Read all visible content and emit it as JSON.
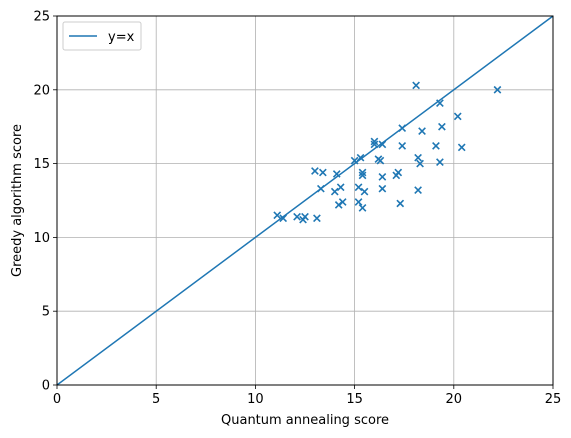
{
  "chart_data": {
    "type": "scatter",
    "xlabel": "Quantum annealing score",
    "ylabel": "Greedy algorithm score",
    "xlim": [
      0,
      25
    ],
    "ylim": [
      0,
      25
    ],
    "xticks": [
      "0",
      "5",
      "10",
      "15",
      "20",
      "25"
    ],
    "yticks": [
      "0",
      "5",
      "10",
      "15",
      "20",
      "25"
    ],
    "grid": true,
    "legend_position": "top-left",
    "reference_line": {
      "name": "y=x",
      "x": [
        0,
        25
      ],
      "y": [
        0,
        25
      ],
      "color": "#1f77b4"
    },
    "series": [
      {
        "marker": "x",
        "color": "#1f77b4",
        "points": [
          [
            11.1,
            11.5
          ],
          [
            11.4,
            11.3
          ],
          [
            12.1,
            11.4
          ],
          [
            12.4,
            11.2
          ],
          [
            12.5,
            11.4
          ],
          [
            13.1,
            11.3
          ],
          [
            13.3,
            13.3
          ],
          [
            13.0,
            14.5
          ],
          [
            13.4,
            14.4
          ],
          [
            14.0,
            13.1
          ],
          [
            14.1,
            14.3
          ],
          [
            14.3,
            13.4
          ],
          [
            14.2,
            12.2
          ],
          [
            14.4,
            12.4
          ],
          [
            15.0,
            15.2
          ],
          [
            15.2,
            13.4
          ],
          [
            15.2,
            12.4
          ],
          [
            15.3,
            15.4
          ],
          [
            15.4,
            14.2
          ],
          [
            15.4,
            14.4
          ],
          [
            15.5,
            13.1
          ],
          [
            15.4,
            12.0
          ],
          [
            16.0,
            16.3
          ],
          [
            16.0,
            16.5
          ],
          [
            16.2,
            15.3
          ],
          [
            16.3,
            15.2
          ],
          [
            16.4,
            16.3
          ],
          [
            16.4,
            14.1
          ],
          [
            16.4,
            13.3
          ],
          [
            17.1,
            14.2
          ],
          [
            17.2,
            14.4
          ],
          [
            17.4,
            17.4
          ],
          [
            17.4,
            16.2
          ],
          [
            17.3,
            12.3
          ],
          [
            18.1,
            20.3
          ],
          [
            18.2,
            15.4
          ],
          [
            18.3,
            15.0
          ],
          [
            18.2,
            13.2
          ],
          [
            18.4,
            17.2
          ],
          [
            19.1,
            16.2
          ],
          [
            19.3,
            15.1
          ],
          [
            19.3,
            19.1
          ],
          [
            19.4,
            17.5
          ],
          [
            20.2,
            18.2
          ],
          [
            20.4,
            16.1
          ],
          [
            22.2,
            20.0
          ]
        ]
      }
    ]
  },
  "legend": {
    "label": "y=x"
  }
}
